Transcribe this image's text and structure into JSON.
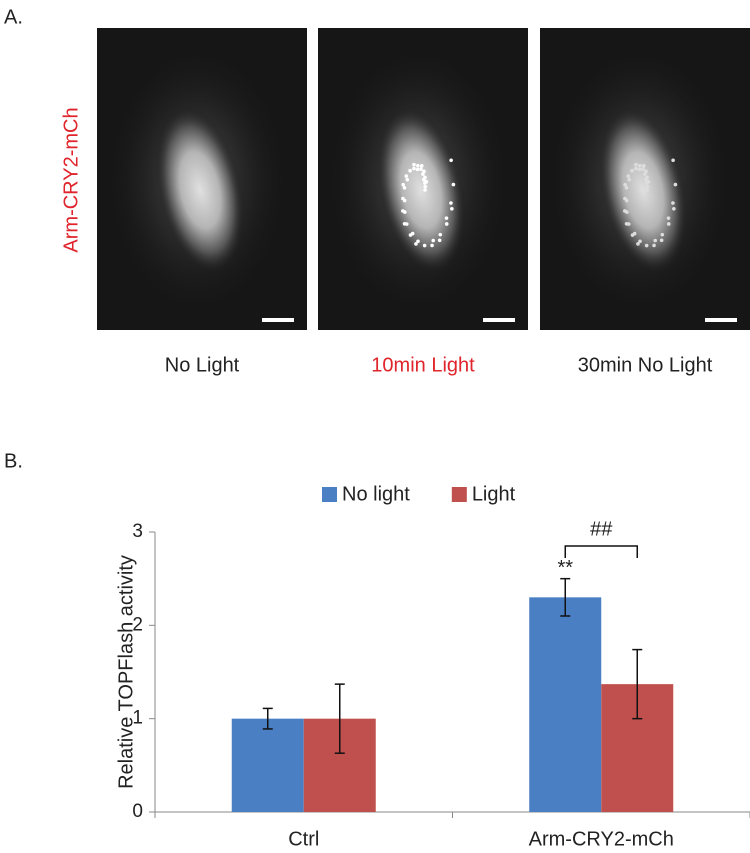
{
  "panel_a": {
    "label": "A.",
    "row_label": "Arm-CRY2-mCh",
    "captions": [
      "No Light",
      "10min Light",
      "30min No Light"
    ]
  },
  "panel_b_label": "B.",
  "chart_data": {
    "type": "bar",
    "y_label": "Relative TOPFlash activity",
    "categories": [
      "Ctrl",
      "Arm-CRY2-mCh"
    ],
    "series": [
      {
        "name": "No light",
        "color": "#4a7fc4",
        "values": [
          1.0,
          2.3
        ],
        "errors": [
          0.11,
          0.2
        ]
      },
      {
        "name": "Light",
        "color": "#c0504d",
        "values": [
          1.0,
          1.37
        ],
        "errors": [
          0.37,
          0.37
        ]
      }
    ],
    "ylim": [
      0,
      3
    ],
    "yticks": [
      0,
      1,
      2,
      3
    ],
    "annotations": [
      "**",
      "##"
    ]
  }
}
